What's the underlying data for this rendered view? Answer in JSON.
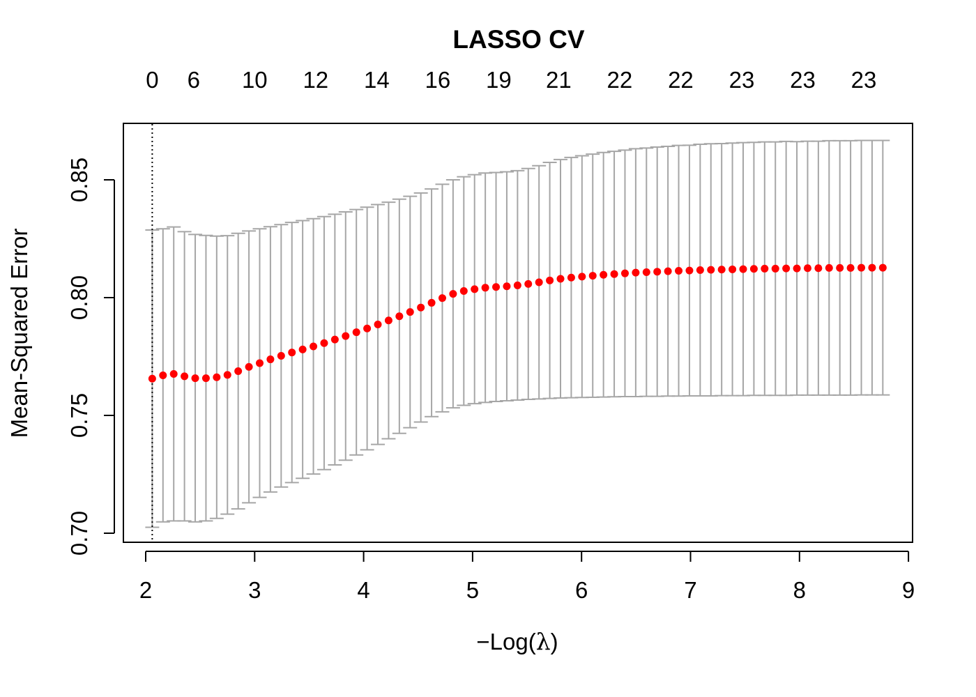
{
  "chart_data": {
    "type": "scatter",
    "title": "LASSO CV",
    "xlabel": "−Log(λ)",
    "ylabel": "Mean-Squared Error",
    "xlim": [
      2,
      9
    ],
    "ylim": [
      0.7,
      0.85
    ],
    "x_ticks": [
      "2",
      "3",
      "4",
      "5",
      "6",
      "7",
      "8",
      "9"
    ],
    "y_ticks": [
      "0.70",
      "0.75",
      "0.80",
      "0.85"
    ],
    "top_axis": {
      "positions": [
        2.06,
        2.44,
        3.0,
        3.56,
        4.12,
        4.68,
        5.24,
        5.79,
        6.35,
        6.91,
        7.47,
        8.03,
        8.59
      ],
      "labels": [
        "0",
        "6",
        "10",
        "12",
        "14",
        "16",
        "19",
        "21",
        "22",
        "22",
        "23",
        "23",
        "23"
      ]
    },
    "vline_x": 2.06,
    "vline_style": "dotted",
    "point_color": "#ff0000",
    "errorbar_color": "#a6a6a6",
    "series": [
      {
        "x": [
          2.06,
          2.1586,
          2.2572,
          2.3558,
          2.4544,
          2.553,
          2.6516,
          2.7502,
          2.8488,
          2.9474,
          3.046,
          3.1446,
          3.2432,
          3.3418,
          3.4404,
          3.539,
          3.6376,
          3.7362,
          3.8348,
          3.9334,
          4.032,
          4.1306,
          4.2292,
          4.3278,
          4.4264,
          4.525,
          4.6236,
          4.7222,
          4.8208,
          4.9194,
          5.018,
          5.1166,
          5.2152,
          5.3138,
          5.4124,
          5.511,
          5.6096,
          5.7082,
          5.8068,
          5.9054,
          6.004,
          6.1026,
          6.2012,
          6.2998,
          6.3984,
          6.497,
          6.5956,
          6.6942,
          6.7928,
          6.8914,
          6.99,
          7.0886,
          7.1872,
          7.2858,
          7.3844,
          7.483,
          7.5816,
          7.6802,
          7.7788,
          7.8774,
          7.976,
          8.0746,
          8.1732,
          8.2718,
          8.3704,
          8.469,
          8.5676,
          8.6662,
          8.7648
        ],
        "y": [
          0.7656,
          0.767,
          0.7676,
          0.7666,
          0.7658,
          0.7658,
          0.7662,
          0.7672,
          0.7688,
          0.7706,
          0.7722,
          0.7738,
          0.7753,
          0.7767,
          0.778,
          0.7793,
          0.7807,
          0.7822,
          0.7837,
          0.7853,
          0.7869,
          0.7886,
          0.7903,
          0.7921,
          0.7939,
          0.7958,
          0.7978,
          0.7998,
          0.8016,
          0.8028,
          0.8036,
          0.8042,
          0.8045,
          0.8048,
          0.8052,
          0.8058,
          0.8065,
          0.8073,
          0.808,
          0.8085,
          0.8089,
          0.8093,
          0.8097,
          0.81,
          0.8103,
          0.8106,
          0.8108,
          0.811,
          0.8112,
          0.8114,
          0.8115,
          0.8117,
          0.8118,
          0.8119,
          0.812,
          0.8121,
          0.8122,
          0.8123,
          0.8123,
          0.8124,
          0.8124,
          0.8125,
          0.8125,
          0.8126,
          0.8126,
          0.8126,
          0.8127,
          0.8127,
          0.8127
        ],
        "lower": [
          0.7025,
          0.7048,
          0.7052,
          0.7052,
          0.7048,
          0.7052,
          0.7063,
          0.7081,
          0.7103,
          0.7129,
          0.7152,
          0.7175,
          0.7196,
          0.7215,
          0.7233,
          0.7251,
          0.727,
          0.729,
          0.731,
          0.7332,
          0.7354,
          0.7377,
          0.7401,
          0.7424,
          0.7448,
          0.7472,
          0.7495,
          0.7515,
          0.7532,
          0.7543,
          0.755,
          0.7555,
          0.7559,
          0.7562,
          0.7565,
          0.7568,
          0.757,
          0.7572,
          0.7574,
          0.7575,
          0.7576,
          0.7577,
          0.7578,
          0.7579,
          0.758,
          0.758,
          0.7581,
          0.7581,
          0.7582,
          0.7582,
          0.7583,
          0.7583,
          0.7583,
          0.7584,
          0.7584,
          0.7584,
          0.7585,
          0.7585,
          0.7585,
          0.7585,
          0.7586,
          0.7586,
          0.7586,
          0.7586,
          0.7586,
          0.7586,
          0.7587,
          0.7587,
          0.7587
        ],
        "upper": [
          0.8287,
          0.8292,
          0.83,
          0.828,
          0.8268,
          0.8264,
          0.8261,
          0.8263,
          0.8273,
          0.8283,
          0.8292,
          0.8301,
          0.831,
          0.8319,
          0.8327,
          0.8335,
          0.8344,
          0.8354,
          0.8364,
          0.8374,
          0.8384,
          0.8395,
          0.8405,
          0.8418,
          0.843,
          0.8444,
          0.8461,
          0.8481,
          0.85,
          0.8513,
          0.8522,
          0.8529,
          0.8531,
          0.8534,
          0.8539,
          0.8548,
          0.856,
          0.8574,
          0.8586,
          0.8595,
          0.8602,
          0.8609,
          0.8616,
          0.8621,
          0.8626,
          0.8632,
          0.8635,
          0.8639,
          0.8642,
          0.8646,
          0.8647,
          0.8651,
          0.8653,
          0.8654,
          0.8656,
          0.8658,
          0.8659,
          0.8661,
          0.8661,
          0.8663,
          0.8662,
          0.8664,
          0.8664,
          0.8666,
          0.8666,
          0.8666,
          0.8667,
          0.8667,
          0.8667
        ]
      }
    ]
  }
}
